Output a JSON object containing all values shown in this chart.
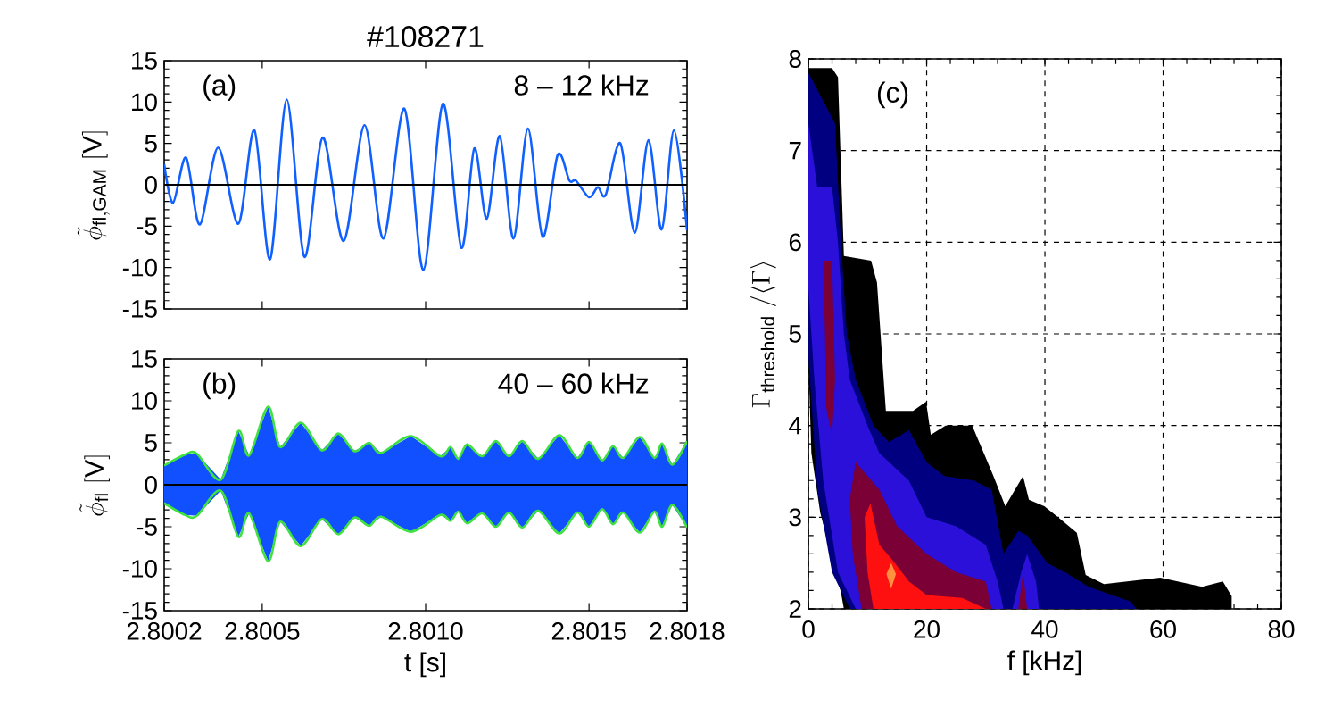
{
  "chart_data": [
    {
      "type": "line",
      "title": "#108271",
      "ylabel": "\\tilde{\\phi}_{\\mathrm{fl,GAM}}\\ [\\mathrm{V}]",
      "annotations": [
        "(a)",
        "8 – 12 kHz"
      ],
      "xlim": [
        2.8002,
        2.8018
      ],
      "xticks": [
        2.8002,
        2.8005,
        2.801,
        2.8015,
        2.8018
      ],
      "ylim": [
        -15,
        15
      ],
      "yticks": [
        -15,
        -10,
        -5,
        0,
        5,
        10,
        15
      ],
      "tick_labels": "y",
      "x": [
        2.8002,
        2.800227,
        2.800267,
        2.800309,
        2.800365,
        2.800427,
        2.800476,
        2.800524,
        2.800575,
        2.800629,
        2.800685,
        2.800749,
        2.800813,
        2.800871,
        2.800935,
        2.800993,
        2.801053,
        2.801109,
        2.801149,
        2.801187,
        2.801227,
        2.801269,
        2.801313,
        2.801358,
        2.801404,
        2.80144,
        2.80146,
        2.8015,
        2.801527,
        2.801551,
        2.801596,
        2.80164,
        2.801682,
        2.801722,
        2.80176,
        2.8018
      ],
      "series": [
        {
          "color": "#1060ff",
          "values": [
            2.5,
            -2.2,
            3.3,
            -4.8,
            4.5,
            -4.7,
            6.6,
            -9.0,
            10.3,
            -8.7,
            5.7,
            -6.8,
            7.2,
            -6.5,
            9.2,
            -10.3,
            9.8,
            -7.6,
            4.4,
            -4.1,
            5.9,
            -6.5,
            6.8,
            -6.3,
            3.6,
            0.5,
            0.5,
            -1.5,
            -0.3,
            -1.2,
            5.0,
            -5.8,
            5.4,
            -5.4,
            6.6,
            -5.5
          ]
        }
      ],
      "ref_lines": [
        {
          "axis": "y",
          "value": 0,
          "color": "#000000"
        }
      ]
    },
    {
      "type": "line",
      "xlabel": "t [s]",
      "ylabel": "\\tilde{\\phi}_{\\mathrm{fl}}\\ [\\mathrm{V}]",
      "annotations": [
        "(b)",
        "40 – 60 kHz"
      ],
      "xlim": [
        2.8002,
        2.8018
      ],
      "xticks": [
        2.8002,
        2.8005,
        {
          "value": 2.801,
          "label": "2.8010"
        },
        2.8015,
        2.8018
      ],
      "ylim": [
        -15,
        15
      ],
      "yticks": [
        -15,
        -10,
        -5,
        0,
        5,
        10,
        15
      ],
      "x": [
        2.8002,
        2.800264,
        2.8003,
        2.800373,
        2.800427,
        2.80046,
        2.800518,
        2.800555,
        2.800618,
        2.800682,
        2.800733,
        2.800782,
        2.800827,
        2.800864,
        2.800955,
        2.801045,
        2.801076,
        2.8011,
        2.801127,
        2.801173,
        2.801215,
        2.801255,
        2.801296,
        2.801345,
        2.801409,
        2.801464,
        2.8015,
        2.80154,
        2.801573,
        2.801605,
        2.801655,
        2.8017,
        2.801724,
        2.801755,
        2.8018
      ],
      "series": [
        {
          "type": "area",
          "color": "#1050ff",
          "values": [
            2.3,
            3.6,
            3.7,
            0.6,
            6.4,
            3.5,
            9.3,
            4.5,
            7.4,
            4.1,
            6.1,
            4.0,
            5.0,
            3.8,
            5.8,
            3.4,
            4.5,
            3.1,
            4.8,
            3.4,
            5.2,
            3.4,
            5.2,
            3.1,
            5.9,
            3.2,
            5.1,
            2.9,
            4.6,
            3.2,
            5.7,
            3.2,
            4.9,
            2.4,
            5.2
          ]
        },
        {
          "type": "area",
          "color": "#1050ff",
          "values": [
            -2.2,
            -3.6,
            -3.7,
            -0.7,
            -6.2,
            -3.4,
            -9.1,
            -4.4,
            -7.3,
            -4.1,
            -5.9,
            -3.9,
            -4.9,
            -3.8,
            -5.6,
            -3.6,
            -4.3,
            -3.2,
            -4.6,
            -3.4,
            -5.0,
            -3.3,
            -5.1,
            -3.1,
            -5.8,
            -3.3,
            -5.0,
            -2.9,
            -4.7,
            -3.3,
            -5.7,
            -3.2,
            -5.0,
            -2.4,
            -5.1
          ]
        },
        {
          "type": "line",
          "color": "#40e040",
          "values": [
            2.3,
            3.6,
            3.7,
            0.6,
            6.4,
            3.5,
            9.3,
            4.5,
            7.4,
            4.1,
            6.1,
            4.0,
            5.0,
            3.8,
            5.8,
            3.4,
            4.5,
            3.1,
            4.8,
            3.4,
            5.2,
            3.4,
            5.2,
            3.1,
            5.9,
            3.2,
            5.1,
            2.9,
            4.6,
            3.2,
            5.7,
            3.2,
            4.9,
            2.4,
            5.2
          ]
        },
        {
          "type": "line",
          "color": "#40e040",
          "values": [
            -2.2,
            -3.6,
            -3.7,
            -0.7,
            -6.2,
            -3.4,
            -9.1,
            -4.4,
            -7.3,
            -4.1,
            -5.9,
            -3.9,
            -4.9,
            -3.8,
            -5.6,
            -3.6,
            -4.3,
            -3.2,
            -4.6,
            -3.4,
            -5.0,
            -3.3,
            -5.1,
            -3.1,
            -5.8,
            -3.3,
            -5.0,
            -2.9,
            -4.7,
            -3.3,
            -5.7,
            -3.2,
            -5.0,
            -2.4,
            -5.1
          ]
        }
      ],
      "ref_lines": [
        {
          "axis": "y",
          "value": 0,
          "color": "#000000"
        }
      ]
    },
    {
      "type": "area",
      "xlabel": "f [kHz]",
      "ylabel": "\\Gamma_{\\mathrm{threshold}}\\ /\\langle\\Gamma\\rangle",
      "annotations": [
        "(c)"
      ],
      "xlim": [
        0,
        80
      ],
      "xticks": [
        0,
        20,
        40,
        60,
        80
      ],
      "ylim": [
        2,
        8
      ],
      "yticks": [
        2,
        3,
        4,
        5,
        6,
        7,
        8
      ],
      "grid": true,
      "series": [
        {
          "color": "#000000",
          "x": [
            0,
            4,
            5,
            6,
            10.6,
            11.6,
            13.1,
            17.7,
            19.9,
            20.7,
            23.2,
            27.7,
            31.3,
            33.3,
            36.3,
            37.3,
            39.9,
            42.4,
            45.4,
            46.9,
            50,
            59.5,
            66.6,
            70.1,
            71.6,
            71.6,
            6,
            5.5,
            2,
            0.5,
            0
          ],
          "values": [
            7.9,
            7.9,
            7.8,
            5.85,
            5.8,
            5.56,
            4.16,
            4.16,
            4.26,
            3.9,
            4.0,
            4.0,
            3.45,
            3.12,
            3.45,
            3.19,
            3.12,
            2.99,
            2.83,
            2.37,
            2.27,
            2.34,
            2.24,
            2.3,
            2.14,
            2,
            2,
            2.18,
            3.05,
            3.7,
            4.7
          ]
        },
        {
          "color": "#000080",
          "x": [
            0,
            4.5,
            5.5,
            6.5,
            8,
            11,
            13.6,
            17,
            20,
            23,
            28,
            31,
            33,
            35.5,
            37,
            40.4,
            43.4,
            47.4,
            54.5,
            55.5,
            7,
            4,
            1.5,
            0
          ],
          "values": [
            7.85,
            7.3,
            6,
            5,
            4.5,
            4.0,
            3.82,
            3.95,
            3.6,
            3.45,
            3.4,
            3.3,
            2.6,
            2.85,
            2.8,
            2.5,
            2.4,
            2.24,
            2.08,
            2,
            2,
            2.4,
            3.3,
            4.75
          ]
        },
        {
          "color": "#2a10d8",
          "x": [
            0,
            1.5,
            4,
            5,
            6,
            7,
            10,
            12,
            17,
            20,
            25,
            30,
            32,
            33,
            8,
            5,
            2.5,
            1,
            0
          ],
          "values": [
            7.3,
            6.6,
            6.6,
            6.0,
            5.0,
            4.5,
            4.0,
            3.7,
            3.4,
            3.0,
            2.9,
            2.7,
            2.3,
            2,
            2,
            2.4,
            3.4,
            4.5,
            5.5
          ]
        },
        {
          "color": "#2a10d8",
          "x": [
            34.5,
            36,
            37,
            38.5,
            39
          ],
          "values": [
            2,
            2.4,
            2.6,
            2.3,
            2
          ]
        },
        {
          "color": "#7a0035",
          "x": [
            2.5,
            4,
            4.5,
            4,
            3,
            2.8
          ],
          "values": [
            5.8,
            5.8,
            4.5,
            3.9,
            4.2,
            5
          ]
        },
        {
          "color": "#7a0035",
          "x": [
            8,
            12,
            15,
            20,
            25,
            30,
            31,
            9,
            7.5,
            7
          ],
          "values": [
            3.6,
            3.3,
            2.9,
            2.6,
            2.4,
            2.3,
            2.0,
            2.0,
            2.6,
            3.2
          ]
        },
        {
          "color": "#7a0035",
          "x": [
            35.5,
            36.3,
            37
          ],
          "values": [
            2,
            2.4,
            2
          ]
        },
        {
          "color": "#ff1010",
          "x": [
            10.5,
            12,
            14,
            17,
            20,
            26,
            30,
            11,
            10,
            9.5
          ],
          "values": [
            3.15,
            2.7,
            2.55,
            2.3,
            2.15,
            2.12,
            2.0,
            2.0,
            2.4,
            3.0
          ]
        },
        {
          "color": "#ff9040",
          "x": [
            14,
            14.8,
            14,
            13.2
          ],
          "values": [
            2.5,
            2.38,
            2.22,
            2.38
          ]
        }
      ]
    }
  ]
}
